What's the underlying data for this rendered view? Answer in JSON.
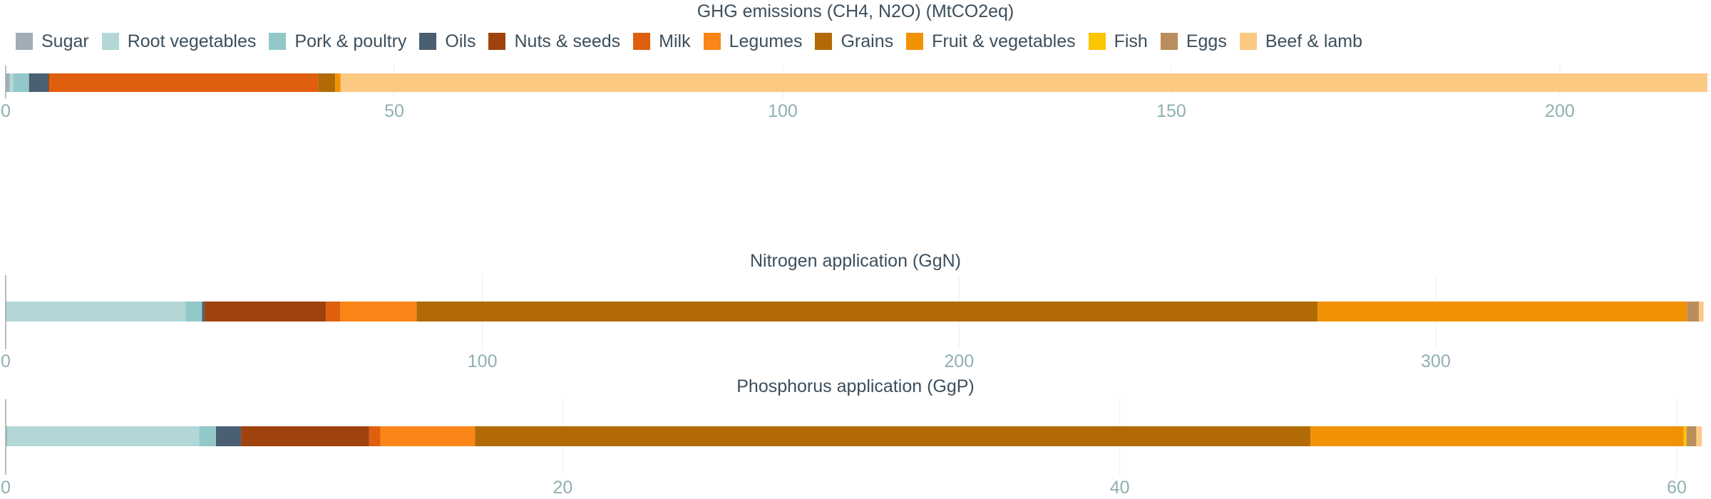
{
  "legend": [
    {
      "name": "Sugar",
      "color": "#a2adb5"
    },
    {
      "name": "Root vegetables",
      "color": "#b3d7d7"
    },
    {
      "name": "Pork & poultry",
      "color": "#92c8c8"
    },
    {
      "name": "Oils",
      "color": "#4a5f72"
    },
    {
      "name": "Nuts & seeds",
      "color": "#a0420d"
    },
    {
      "name": "Milk",
      "color": "#e05f0f"
    },
    {
      "name": "Legumes",
      "color": "#fb8516"
    },
    {
      "name": "Grains",
      "color": "#b16a06"
    },
    {
      "name": "Fruit & vegetables",
      "color": "#f19204"
    },
    {
      "name": "Fish",
      "color": "#fbc500"
    },
    {
      "name": "Eggs",
      "color": "#b98e5c"
    },
    {
      "name": "Beef & lamb",
      "color": "#fcc983"
    }
  ],
  "chart_data": [
    {
      "type": "bar",
      "orientation": "horizontal",
      "stacked": true,
      "title": "GHG emissions (CH4, N2O) (MtCO2eq)",
      "xlim": [
        0,
        219
      ],
      "ticks": [
        0,
        50,
        100,
        150,
        200
      ],
      "series": [
        {
          "name": "Sugar",
          "value": 0.5
        },
        {
          "name": "Root vegetables",
          "value": 0.5
        },
        {
          "name": "Pork & poultry",
          "value": 2.0
        },
        {
          "name": "Oils",
          "value": 2.5
        },
        {
          "name": "Nuts & seeds",
          "value": 0.1
        },
        {
          "name": "Milk",
          "value": 34.6
        },
        {
          "name": "Legumes",
          "value": 0.0
        },
        {
          "name": "Grains",
          "value": 2.2
        },
        {
          "name": "Fruit & vegetables",
          "value": 0.7
        },
        {
          "name": "Fish",
          "value": 0.0
        },
        {
          "name": "Eggs",
          "value": 0.0
        },
        {
          "name": "Beef & lamb",
          "value": 175.9
        }
      ]
    },
    {
      "type": "bar",
      "orientation": "horizontal",
      "stacked": true,
      "title": "Nitrogen application (GgN)",
      "xlim": [
        0,
        357
      ],
      "ticks": [
        0,
        100,
        200,
        300
      ],
      "series": [
        {
          "name": "Sugar",
          "value": 0.2
        },
        {
          "name": "Root vegetables",
          "value": 37.5
        },
        {
          "name": "Pork & poultry",
          "value": 3.5
        },
        {
          "name": "Oils",
          "value": 0.5
        },
        {
          "name": "Nuts & seeds",
          "value": 25.5
        },
        {
          "name": "Milk",
          "value": 3.0
        },
        {
          "name": "Legumes",
          "value": 16.0
        },
        {
          "name": "Grains",
          "value": 189.0
        },
        {
          "name": "Fruit & vegetables",
          "value": 77.5
        },
        {
          "name": "Fish",
          "value": 0.0
        },
        {
          "name": "Eggs",
          "value": 2.5
        },
        {
          "name": "Beef & lamb",
          "value": 1.0
        }
      ]
    },
    {
      "type": "bar",
      "orientation": "horizontal",
      "stacked": true,
      "title": "Phosphorus application (GgP)",
      "xlim": [
        0,
        61.1
      ],
      "ticks": [
        0,
        20,
        40,
        60
      ],
      "series": [
        {
          "name": "Sugar",
          "value": 0.05
        },
        {
          "name": "Root vegetables",
          "value": 6.9
        },
        {
          "name": "Pork & poultry",
          "value": 0.6
        },
        {
          "name": "Oils",
          "value": 0.9
        },
        {
          "name": "Nuts & seeds",
          "value": 4.6
        },
        {
          "name": "Milk",
          "value": 0.4
        },
        {
          "name": "Legumes",
          "value": 3.4
        },
        {
          "name": "Grains",
          "value": 30.0
        },
        {
          "name": "Fruit & vegetables",
          "value": 13.4
        },
        {
          "name": "Fish",
          "value": 0.1
        },
        {
          "name": "Eggs",
          "value": 0.35
        },
        {
          "name": "Beef & lamb",
          "value": 0.2
        }
      ]
    }
  ]
}
